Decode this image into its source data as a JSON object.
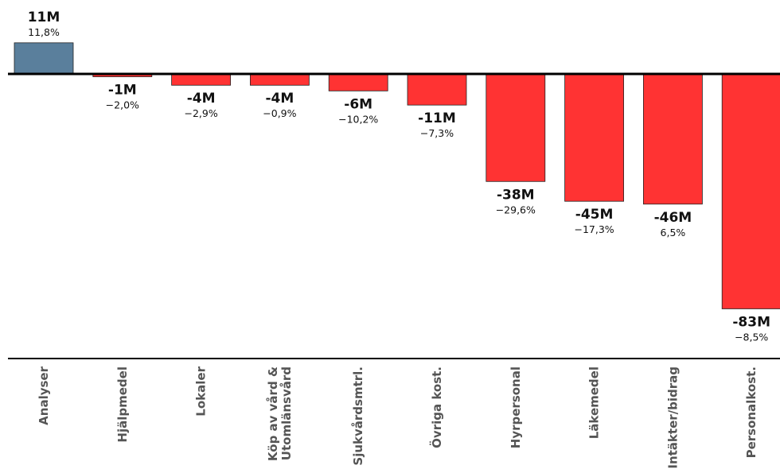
{
  "chart_data": {
    "type": "bar",
    "title": "",
    "xlabel": "",
    "ylabel": "",
    "grid": false,
    "legend": "none",
    "ylim": [
      -95,
      11
    ],
    "categories": [
      "Analyser",
      "Hjälpmedel",
      "Lokaler",
      "Köp av vård &\nUtomlänsvård",
      "Sjukvårdsmtrl.",
      "Övriga kost.",
      "Hyrpersonal",
      "Läkemedel",
      "Intäkter/bidrag",
      "Personalkost."
    ],
    "values": [
      11,
      -1,
      -4,
      -4,
      -6,
      -11,
      -38,
      -45,
      -46,
      -83
    ],
    "value_labels": [
      "11M",
      "-1M",
      "-4M",
      "-4M",
      "-6M",
      "-11M",
      "-38M",
      "-45M",
      "-46M",
      "-83M"
    ],
    "percent_labels": [
      "11,8%",
      "−2,0%",
      "−2,9%",
      "−0,9%",
      "−10,2%",
      "−7,3%",
      "−29,6%",
      "−17,3%",
      "6,5%",
      "−8,5%"
    ],
    "colors": {
      "positive": "#5a7f9c",
      "negative": "#ff3333",
      "axis": "#000000",
      "category_text": "#555555"
    }
  }
}
